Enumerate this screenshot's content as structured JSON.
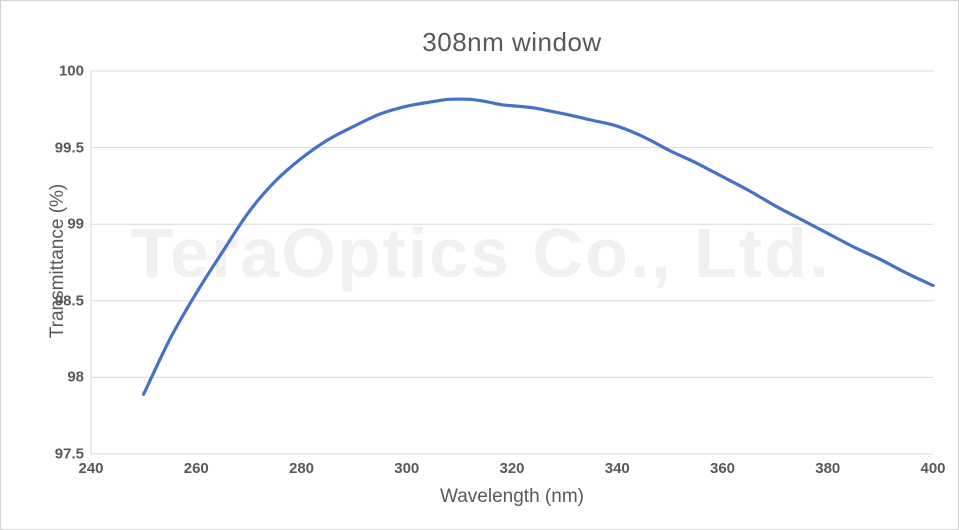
{
  "chart_data": {
    "type": "line",
    "title": "308nm window",
    "xlabel": "Wavelength (nm)",
    "ylabel": "Transmittance (%)",
    "watermark": "TeraOptics Co., Ltd.",
    "xlim": [
      240,
      400
    ],
    "ylim": [
      97.5,
      100
    ],
    "x_ticks": [
      240,
      260,
      280,
      300,
      320,
      340,
      360,
      380,
      400
    ],
    "y_ticks": [
      97.5,
      98,
      98.5,
      99,
      99.5,
      100
    ],
    "grid": "horizontal-only",
    "legend": "none",
    "series": [
      {
        "name": "transmittance",
        "color": "#4472C4",
        "x": [
          250,
          255,
          260,
          265,
          270,
          275,
          280,
          285,
          290,
          295,
          300,
          305,
          308,
          312,
          315,
          318,
          321,
          324,
          327,
          330,
          335,
          340,
          345,
          350,
          355,
          360,
          365,
          370,
          375,
          380,
          385,
          390,
          395,
          400
        ],
        "y": [
          97.89,
          98.25,
          98.55,
          98.82,
          99.08,
          99.28,
          99.43,
          99.55,
          99.64,
          99.72,
          99.77,
          99.8,
          99.815,
          99.815,
          99.8,
          99.78,
          99.77,
          99.76,
          99.74,
          99.72,
          99.68,
          99.64,
          99.57,
          99.48,
          99.4,
          99.31,
          99.22,
          99.12,
          99.03,
          98.94,
          98.85,
          98.77,
          98.68,
          98.6
        ]
      }
    ]
  },
  "colors": {
    "line": "#4472C4",
    "gridline": "#d9d9d9",
    "axis_line": "#d9d9d9",
    "text": "#595959",
    "watermark": "#f1f1f1",
    "frame_border": "#d4d4d4",
    "background": "#ffffff"
  }
}
